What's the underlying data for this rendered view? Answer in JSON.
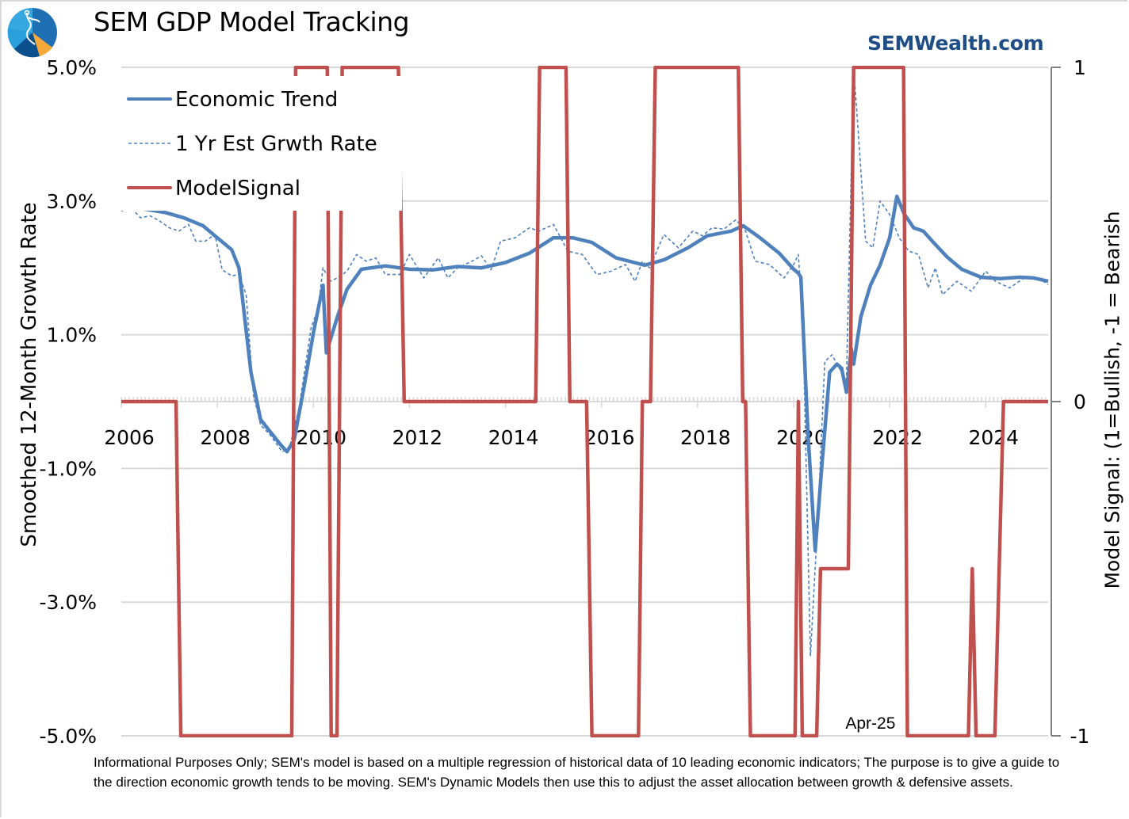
{
  "header": {
    "title": "SEM GDP Model Tracking",
    "brand": "SEMWealth.com",
    "logo_icon": "compass-pie-logo-icon"
  },
  "footer": {
    "note": "Informational Purposes Only; SEM's model is based on a multiple regression of historical data of 10 leading economic indicators; The purpose is to give a guide to the direction economic growth tends to be moving. SEM's Dynamic Models then use this to adjust the asset allocation between growth & defensive assets."
  },
  "colors": {
    "trend": "#4f81bd",
    "signal": "#c0504d",
    "brand": "#1f4e87",
    "grid": "#d9d9d9"
  },
  "chart_data": {
    "type": "line",
    "title": "SEM GDP Model Tracking",
    "xlabel": "",
    "ylabel": "Smoothed 12-Month Growth Rate",
    "y2label": "Model Signal: (1=Bullish, -1 = Bearish",
    "xlim": [
      2006,
      2025.3
    ],
    "ylim": [
      -5.0,
      5.0
    ],
    "y2lim": [
      -1,
      1
    ],
    "x_ticks": [
      "2006",
      "2008",
      "2010",
      "2012",
      "2014",
      "2016",
      "2018",
      "2020",
      "2022",
      "2024"
    ],
    "y_ticks": [
      "5.0%",
      "3.0%",
      "1.0%",
      "-1.0%",
      "-3.0%",
      "-5.0%"
    ],
    "y_tick_values": [
      5,
      3,
      1,
      -1,
      -3,
      -5
    ],
    "y2_ticks": [
      "1",
      "0",
      "-1"
    ],
    "y2_tick_values": [
      1,
      0,
      -1
    ],
    "grid": true,
    "legend_position": "top-left",
    "annotations": [
      {
        "text": "Apr-25",
        "x": 2021.6,
        "y": -4.8
      }
    ],
    "series": [
      {
        "name": "Economic Trend",
        "axis": "left",
        "style": "solid",
        "points": [
          [
            2006.0,
            2.95
          ],
          [
            2006.3,
            2.9
          ],
          [
            2006.9,
            2.83
          ],
          [
            2007.3,
            2.75
          ],
          [
            2007.7,
            2.63
          ],
          [
            2008.0,
            2.45
          ],
          [
            2008.3,
            2.27
          ],
          [
            2008.45,
            2.0
          ],
          [
            2008.7,
            0.44
          ],
          [
            2008.9,
            -0.27
          ],
          [
            2009.1,
            -0.45
          ],
          [
            2009.3,
            -0.63
          ],
          [
            2009.45,
            -0.75
          ],
          [
            2009.6,
            -0.57
          ],
          [
            2009.8,
            0.2
          ],
          [
            2010.0,
            1.03
          ],
          [
            2010.2,
            1.74
          ],
          [
            2010.27,
            0.73
          ],
          [
            2010.5,
            1.27
          ],
          [
            2010.7,
            1.68
          ],
          [
            2011.0,
            1.98
          ],
          [
            2011.5,
            2.03
          ],
          [
            2012.0,
            1.98
          ],
          [
            2012.5,
            1.97
          ],
          [
            2013.0,
            2.02
          ],
          [
            2013.5,
            2.0
          ],
          [
            2014.0,
            2.08
          ],
          [
            2014.5,
            2.22
          ],
          [
            2015.0,
            2.45
          ],
          [
            2015.4,
            2.45
          ],
          [
            2015.8,
            2.38
          ],
          [
            2016.3,
            2.15
          ],
          [
            2016.9,
            2.04
          ],
          [
            2017.3,
            2.12
          ],
          [
            2017.8,
            2.3
          ],
          [
            2018.2,
            2.48
          ],
          [
            2018.7,
            2.55
          ],
          [
            2018.95,
            2.63
          ],
          [
            2019.3,
            2.45
          ],
          [
            2019.7,
            2.22
          ],
          [
            2020.0,
            1.98
          ],
          [
            2020.1,
            1.92
          ],
          [
            2020.15,
            1.86
          ],
          [
            2020.3,
            -0.5
          ],
          [
            2020.45,
            -2.23
          ],
          [
            2020.6,
            -0.86
          ],
          [
            2020.75,
            0.44
          ],
          [
            2020.9,
            0.56
          ],
          [
            2021.0,
            0.5
          ],
          [
            2021.1,
            0.14
          ],
          [
            2021.2,
            0.79
          ],
          [
            2021.25,
            0.56
          ],
          [
            2021.4,
            1.27
          ],
          [
            2021.6,
            1.74
          ],
          [
            2021.8,
            2.04
          ],
          [
            2022.0,
            2.45
          ],
          [
            2022.15,
            3.07
          ],
          [
            2022.3,
            2.81
          ],
          [
            2022.5,
            2.6
          ],
          [
            2022.7,
            2.55
          ],
          [
            2022.9,
            2.39
          ],
          [
            2023.2,
            2.16
          ],
          [
            2023.5,
            1.98
          ],
          [
            2023.9,
            1.86
          ],
          [
            2024.3,
            1.84
          ],
          [
            2024.7,
            1.86
          ],
          [
            2025.0,
            1.85
          ],
          [
            2025.3,
            1.8
          ]
        ]
      },
      {
        "name": "1 Yr Est Grwth Rate",
        "axis": "left",
        "style": "dashed",
        "points": [
          [
            2006.0,
            2.85
          ],
          [
            2006.2,
            2.9
          ],
          [
            2006.4,
            2.75
          ],
          [
            2006.6,
            2.78
          ],
          [
            2006.8,
            2.7
          ],
          [
            2007.0,
            2.6
          ],
          [
            2007.2,
            2.55
          ],
          [
            2007.4,
            2.65
          ],
          [
            2007.55,
            2.4
          ],
          [
            2007.75,
            2.4
          ],
          [
            2007.95,
            2.5
          ],
          [
            2008.1,
            1.97
          ],
          [
            2008.3,
            1.88
          ],
          [
            2008.45,
            1.9
          ],
          [
            2008.6,
            1.6
          ],
          [
            2008.75,
            0.1
          ],
          [
            2008.9,
            -0.35
          ],
          [
            2009.1,
            -0.5
          ],
          [
            2009.35,
            -0.75
          ],
          [
            2009.5,
            -0.7
          ],
          [
            2009.7,
            -0.1
          ],
          [
            2009.95,
            1.1
          ],
          [
            2010.1,
            1.4
          ],
          [
            2010.2,
            2.0
          ],
          [
            2010.35,
            1.8
          ],
          [
            2010.5,
            1.85
          ],
          [
            2010.7,
            1.95
          ],
          [
            2010.9,
            2.2
          ],
          [
            2011.1,
            2.1
          ],
          [
            2011.3,
            2.15
          ],
          [
            2011.5,
            1.9
          ],
          [
            2011.8,
            1.9
          ],
          [
            2012.0,
            2.2
          ],
          [
            2012.3,
            1.85
          ],
          [
            2012.6,
            2.15
          ],
          [
            2012.8,
            1.85
          ],
          [
            2013.0,
            2.0
          ],
          [
            2013.3,
            2.1
          ],
          [
            2013.5,
            2.18
          ],
          [
            2013.7,
            1.97
          ],
          [
            2013.9,
            2.4
          ],
          [
            2014.2,
            2.45
          ],
          [
            2014.5,
            2.6
          ],
          [
            2014.7,
            2.55
          ],
          [
            2015.0,
            2.65
          ],
          [
            2015.3,
            2.25
          ],
          [
            2015.6,
            2.2
          ],
          [
            2015.9,
            1.9
          ],
          [
            2016.2,
            1.95
          ],
          [
            2016.5,
            2.05
          ],
          [
            2016.7,
            1.8
          ],
          [
            2016.85,
            2.1
          ],
          [
            2017.0,
            2.0
          ],
          [
            2017.3,
            2.5
          ],
          [
            2017.6,
            2.3
          ],
          [
            2017.9,
            2.55
          ],
          [
            2018.1,
            2.48
          ],
          [
            2018.3,
            2.6
          ],
          [
            2018.55,
            2.58
          ],
          [
            2018.8,
            2.72
          ],
          [
            2019.0,
            2.55
          ],
          [
            2019.2,
            2.1
          ],
          [
            2019.5,
            2.05
          ],
          [
            2019.8,
            1.85
          ],
          [
            2020.0,
            2.05
          ],
          [
            2020.1,
            2.2
          ],
          [
            2020.2,
            1.0
          ],
          [
            2020.35,
            -3.8
          ],
          [
            2020.5,
            -1.8
          ],
          [
            2020.65,
            0.6
          ],
          [
            2020.8,
            0.7
          ],
          [
            2020.95,
            0.5
          ],
          [
            2021.1,
            0.3
          ],
          [
            2021.25,
            5.0
          ],
          [
            2021.35,
            4.0
          ],
          [
            2021.5,
            2.4
          ],
          [
            2021.65,
            2.3
          ],
          [
            2021.8,
            3.0
          ],
          [
            2022.0,
            2.8
          ],
          [
            2022.2,
            2.45
          ],
          [
            2022.4,
            2.25
          ],
          [
            2022.6,
            2.2
          ],
          [
            2022.8,
            1.7
          ],
          [
            2022.95,
            2.0
          ],
          [
            2023.1,
            1.6
          ],
          [
            2023.4,
            1.8
          ],
          [
            2023.7,
            1.65
          ],
          [
            2024.0,
            1.95
          ],
          [
            2024.2,
            1.8
          ],
          [
            2024.5,
            1.7
          ],
          [
            2024.8,
            1.85
          ],
          [
            2025.1,
            1.85
          ],
          [
            2025.3,
            1.75
          ]
        ]
      },
      {
        "name": "ModelSignal",
        "axis": "right",
        "style": "solid",
        "points": [
          [
            2006.0,
            0
          ],
          [
            2007.14,
            0
          ],
          [
            2007.24,
            -1
          ],
          [
            2009.55,
            -1
          ],
          [
            2009.63,
            1
          ],
          [
            2010.29,
            1
          ],
          [
            2010.37,
            -1
          ],
          [
            2010.49,
            -1
          ],
          [
            2010.6,
            1
          ],
          [
            2011.77,
            1
          ],
          [
            2011.89,
            0
          ],
          [
            2014.63,
            0
          ],
          [
            2014.71,
            1
          ],
          [
            2015.26,
            1
          ],
          [
            2015.34,
            0
          ],
          [
            2015.69,
            0
          ],
          [
            2015.8,
            -1
          ],
          [
            2016.77,
            -1
          ],
          [
            2016.85,
            0
          ],
          [
            2017.02,
            0
          ],
          [
            2017.12,
            1
          ],
          [
            2018.85,
            1
          ],
          [
            2018.94,
            0
          ],
          [
            2019.0,
            0
          ],
          [
            2019.1,
            -1
          ],
          [
            2020.03,
            -1
          ],
          [
            2020.1,
            0
          ],
          [
            2020.18,
            -1
          ],
          [
            2020.48,
            -1
          ],
          [
            2020.56,
            -0.5
          ],
          [
            2021.14,
            -0.5
          ],
          [
            2021.25,
            1
          ],
          [
            2022.29,
            1
          ],
          [
            2022.37,
            -1
          ],
          [
            2023.64,
            -1
          ],
          [
            2023.72,
            -0.5
          ],
          [
            2023.8,
            -1
          ],
          [
            2024.19,
            -1
          ],
          [
            2024.37,
            0
          ],
          [
            2025.3,
            0
          ]
        ]
      }
    ]
  }
}
